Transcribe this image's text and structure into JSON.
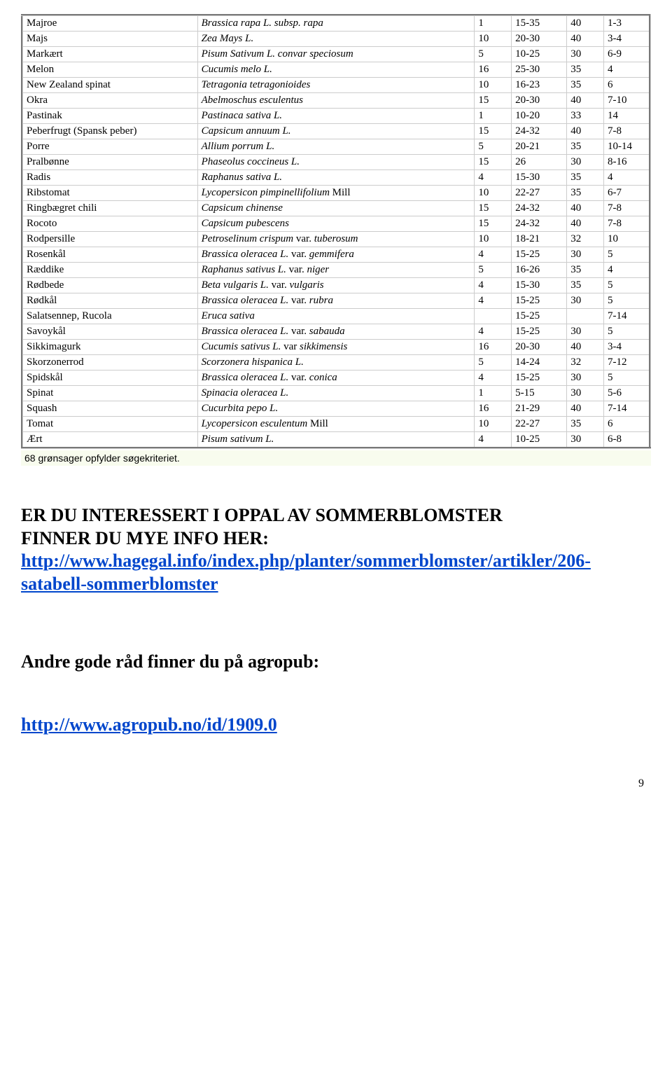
{
  "table": {
    "rows": [
      {
        "name": "Majroe",
        "latin": "Brassica rapa L. subsp. rapa",
        "spanLatin": false,
        "italic2": "",
        "c2": "1",
        "c3": "15-35",
        "c4": "40",
        "c5": "1-3"
      },
      {
        "name": "Majs",
        "latin": "Zea Mays L.",
        "c2": "10",
        "c3": "20-30",
        "c4": "40",
        "c5": "3-4"
      },
      {
        "name": "Markært",
        "latin": "Pisum Sativum L. convar speciosum",
        "c2": "5",
        "c3": "10-25",
        "c4": "30",
        "c5": "6-9"
      },
      {
        "name": "Melon",
        "latin": "Cucumis melo L.",
        "c2": "16",
        "c3": "25-30",
        "c4": "35",
        "c5": "4"
      },
      {
        "name": "New Zealand spinat",
        "latin": "Tetragonia tetragonioides",
        "c2": "10",
        "c3": "16-23",
        "c4": "35",
        "c5": "6"
      },
      {
        "name": "Okra",
        "latin": "Abelmoschus esculentus",
        "c2": "15",
        "c3": "20-30",
        "c4": "40",
        "c5": "7-10"
      },
      {
        "name": "Pastinak",
        "latin": "Pastinaca sativa L.",
        "c2": "1",
        "c3": "10-20",
        "c4": "33",
        "c5": "14"
      },
      {
        "name": "Peberfrugt (Spansk peber)",
        "latin": "Capsicum annuum L.",
        "c2": "15",
        "c3": "24-32",
        "c4": "40",
        "c5": "7-8"
      },
      {
        "name": "Porre",
        "latin": "Allium porrum L.",
        "c2": "5",
        "c3": "20-21",
        "c4": "35",
        "c5": "10-14"
      },
      {
        "name": "Pralbønne",
        "latin": "Phaseolus coccineus L.",
        "c2": "15",
        "c3": "26",
        "c4": "30",
        "c5": "8-16"
      },
      {
        "name": "Radis",
        "latin": "Raphanus sativa L.",
        "c2": "4",
        "c3": "15-30",
        "c4": "35",
        "c5": "4"
      },
      {
        "name": "Ribstomat",
        "latin": "Lycopersicon pimpinellifolium",
        "latinSuffix": " Mill",
        "c2": "10",
        "c3": "22-27",
        "c4": "35",
        "c5": "6-7"
      },
      {
        "name": "Ringbægret chili",
        "latin": "Capsicum chinense",
        "c2": "15",
        "c3": "24-32",
        "c4": "40",
        "c5": "7-8"
      },
      {
        "name": "Rocoto",
        "latin": "Capsicum pubescens",
        "c2": "15",
        "c3": "24-32",
        "c4": "40",
        "c5": "7-8"
      },
      {
        "name": "Rodpersille",
        "latin": "Petroselinum crispum",
        "latinSuffix": " var. ",
        "latinTail": "tuberosum",
        "c2": "10",
        "c3": "18-21",
        "c4": "32",
        "c5": "10"
      },
      {
        "name": "Rosenkål",
        "latin": "Brassica oleracea L.",
        "latinSuffix": " var. ",
        "latinTail": "gemmifera",
        "c2": "4",
        "c3": "15-25",
        "c4": "30",
        "c5": "5"
      },
      {
        "name": "Ræddike",
        "latin": "Raphanus sativus L.",
        "latinSuffix": " var. ",
        "latinTail": "niger",
        "c2": "5",
        "c3": "16-26",
        "c4": "35",
        "c5": "4"
      },
      {
        "name": "Rødbede",
        "latin": "Beta vulgaris L.",
        "latinSuffix": " var. ",
        "latinTail": "vulgaris",
        "c2": "4",
        "c3": "15-30",
        "c4": "35",
        "c5": "5"
      },
      {
        "name": "Rødkål",
        "latin": "Brassica oleracea L.",
        "latinSuffix": " var. ",
        "latinTail": "rubra",
        "c2": "4",
        "c3": "15-25",
        "c4": "30",
        "c5": "5"
      },
      {
        "name": "Salatsennep, Rucola",
        "latin": "Eruca sativa",
        "c2": "",
        "c3": "15-25",
        "c4": "",
        "c5": "7-14"
      },
      {
        "name": "Savoykål",
        "latin": "Brassica oleracea L.",
        "latinSuffix": " var. ",
        "latinTail": "sabauda",
        "c2": "4",
        "c3": "15-25",
        "c4": "30",
        "c5": "5"
      },
      {
        "name": "Sikkimagurk",
        "latin": "Cucumis sativus L.",
        "latinSuffix": " var ",
        "latinTail": "sikkimensis",
        "c2": "16",
        "c3": "20-30",
        "c4": "40",
        "c5": "3-4"
      },
      {
        "name": "Skorzonerrod",
        "latin": "Scorzonera hispanica L.",
        "c2": "5",
        "c3": "14-24",
        "c4": "32",
        "c5": "7-12"
      },
      {
        "name": "Spidskål",
        "latin": "Brassica oleracea L.",
        "latinSuffix": " var. ",
        "latinTail": "conica",
        "c2": "4",
        "c3": "15-25",
        "c4": "30",
        "c5": "5"
      },
      {
        "name": "Spinat",
        "latin": "Spinacia oleracea L.",
        "c2": "1",
        "c3": "5-15",
        "c4": "30",
        "c5": "5-6"
      },
      {
        "name": "Squash",
        "latin": "Cucurbita pepo L.",
        "c2": "16",
        "c3": "21-29",
        "c4": "40",
        "c5": "7-14"
      },
      {
        "name": "Tomat",
        "latin": "Lycopersicon esculentum",
        "latinSuffix": " Mill",
        "c2": "10",
        "c3": "22-27",
        "c4": "35",
        "c5": "6"
      },
      {
        "name": "Ært",
        "latin": "Pisum sativum L.",
        "c2": "4",
        "c3": "10-25",
        "c4": "30",
        "c5": "6-8"
      }
    ]
  },
  "footerNote": "68 grønsager opfylder søgekriteriet.",
  "heading1a": "ER DU INTERESSERT I OPPAL  AV SOMMERBLOMSTER",
  "heading1b": "FINNER DU MYE INFO HER:",
  "link1": "http://www.hagegal.info/index.php/planter/sommerblomster/artikler/206-satabell-sommerblomster",
  "heading2": "Andre gode råd finner du på agropub:",
  "link2": "http://www.agropub.no/id/1909.0",
  "pageNum": "9"
}
